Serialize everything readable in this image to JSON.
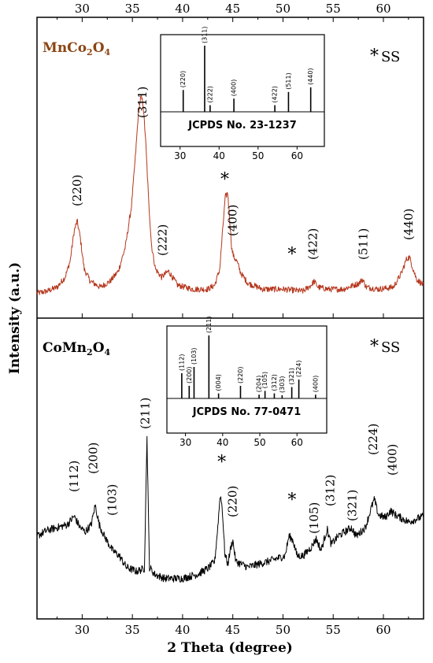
{
  "figure": {
    "xlabel": "2 Theta (degree)",
    "ylabel": "Intensity (a.u.)",
    "xlim": [
      25.5,
      64
    ],
    "x_ticks": [
      "30",
      "35",
      "40",
      "45",
      "50",
      "55",
      "60"
    ],
    "x_tick_values": [
      30,
      35,
      40,
      45,
      50,
      55,
      60
    ],
    "frame_color": "#000000"
  },
  "chart_data": [
    {
      "type": "line",
      "panel": "top",
      "color": "#b5361c",
      "sample_label": {
        "base": "MnCo",
        "sub1": "2",
        "mid": "O",
        "sub2": "4",
        "color": "#8b4513"
      },
      "legend_marker": "*",
      "legend_text": "SS",
      "x": [
        25.5,
        26.5,
        27.5,
        28.3,
        28.8,
        29.2,
        29.5,
        29.8,
        30.2,
        30.8,
        31.8,
        32.8,
        33.6,
        34.3,
        34.9,
        35.3,
        35.6,
        35.85,
        36.05,
        36.3,
        36.6,
        36.9,
        37.3,
        37.9,
        38.6,
        39.5,
        41,
        42.5,
        43.2,
        43.7,
        44,
        44.25,
        44.5,
        44.7,
        44.9,
        45.1,
        45.4,
        45.8,
        46.5,
        48,
        50,
        52,
        52.8,
        53.1,
        53.5,
        54.5,
        56,
        57.6,
        57.9,
        58.3,
        59.5,
        61,
        61.8,
        62.3,
        62.6,
        62.9,
        63.3,
        64
      ],
      "y": [
        2,
        3,
        5,
        10,
        18,
        33,
        38,
        30,
        14,
        8,
        5,
        8,
        13,
        25,
        45,
        70,
        92,
        100,
        97,
        80,
        50,
        26,
        14,
        10,
        13,
        6,
        4,
        4,
        6,
        14,
        34,
        50,
        52,
        38,
        24,
        20,
        18,
        12,
        7,
        4,
        4,
        3,
        6,
        8,
        5,
        4,
        4,
        7,
        9,
        5,
        4,
        5,
        12,
        19,
        20,
        15,
        9,
        6
      ],
      "ylim": [
        -1,
        105
      ],
      "peaks": [
        {
          "label": "(220)",
          "x": 29.5
        },
        {
          "label": "(311)",
          "x": 36.0
        },
        {
          "label": "(222)",
          "x": 38.0
        },
        {
          "label": "(400)",
          "x": 45.0
        },
        {
          "label": "(422)",
          "x": 53.0
        },
        {
          "label": "(511)",
          "x": 58.0
        },
        {
          "label": "(440)",
          "x": 62.5
        }
      ],
      "star_markers": [
        44.2,
        50.9
      ],
      "inset": {
        "caption": "JCPDS No. 23-1237",
        "xlim": [
          25,
          67
        ],
        "ticks": [
          30,
          40,
          50,
          60
        ],
        "tick_labels": [
          "30",
          "40",
          "50",
          "60"
        ],
        "reflections": [
          {
            "label": "(220)",
            "x": 30.8,
            "h": 0.33
          },
          {
            "label": "(311)",
            "x": 36.3,
            "h": 1.0
          },
          {
            "label": "(222)",
            "x": 37.7,
            "h": 0.1
          },
          {
            "label": "(400)",
            "x": 43.8,
            "h": 0.2
          },
          {
            "label": "(422)",
            "x": 54.3,
            "h": 0.1
          },
          {
            "label": "(511)",
            "x": 57.8,
            "h": 0.3
          },
          {
            "label": "(440)",
            "x": 63.5,
            "h": 0.37
          }
        ]
      }
    },
    {
      "type": "line",
      "panel": "bottom",
      "color": "#000000",
      "sample_label": {
        "base": "CoMn",
        "sub1": "2",
        "mid": "O",
        "sub2": "4",
        "color": "#000000"
      },
      "legend_marker": "*",
      "legend_text": "SS",
      "x": [
        25.5,
        26.5,
        27.5,
        28.5,
        29.2,
        29.8,
        30.3,
        30.9,
        31.3,
        31.7,
        32.2,
        33.0,
        33.7,
        34.4,
        35.4,
        36.2,
        36.45,
        36.7,
        37.2,
        38.2,
        40,
        41.5,
        42.5,
        43.2,
        43.5,
        43.75,
        43.95,
        44.2,
        44.5,
        44.8,
        45.0,
        45.3,
        46.5,
        48.5,
        50.2,
        50.6,
        51.0,
        51.4,
        52.0,
        52.8,
        53.3,
        53.8,
        54.4,
        54.8,
        55.5,
        56.8,
        57.3,
        58.2,
        58.8,
        59.1,
        59.5,
        60.2,
        60.7,
        61.2,
        62.5,
        64
      ],
      "y": [
        30,
        34,
        36,
        38,
        44,
        36,
        33,
        38,
        52,
        38,
        30,
        20,
        16,
        8,
        5,
        7,
        100,
        8,
        3,
        0,
        0,
        3,
        7,
        12,
        36,
        60,
        50,
        18,
        10,
        22,
        27,
        12,
        8,
        12,
        16,
        30,
        27,
        16,
        16,
        22,
        28,
        20,
        35,
        24,
        30,
        36,
        30,
        36,
        50,
        56,
        45,
        43,
        48,
        45,
        40,
        44
      ],
      "ylim": [
        -3,
        104
      ],
      "peaks": [
        {
          "label": "(112)",
          "x": 29.2
        },
        {
          "label": "(200)",
          "x": 31.1
        },
        {
          "label": "(103)",
          "x": 33.0
        },
        {
          "label": "(211)",
          "x": 36.3
        },
        {
          "label": "(220)",
          "x": 45.0
        },
        {
          "label": "(105)",
          "x": 53.1
        },
        {
          "label": "(312)",
          "x": 54.7
        },
        {
          "label": "(321)",
          "x": 56.9
        },
        {
          "label": "(224)",
          "x": 59.0
        },
        {
          "label": "(400)",
          "x": 60.9
        }
      ],
      "star_markers": [
        43.9,
        50.9
      ],
      "inset": {
        "caption": "JCPDS No. 77-0471",
        "xlim": [
          25,
          68
        ],
        "ticks": [
          30,
          40,
          50,
          60
        ],
        "tick_labels": [
          "30",
          "40",
          "50",
          "60"
        ],
        "reflections": [
          {
            "label": "(112)",
            "x": 29.0,
            "h": 0.4
          },
          {
            "label": "(200)",
            "x": 31.0,
            "h": 0.2
          },
          {
            "label": "(103)",
            "x": 32.3,
            "h": 0.5
          },
          {
            "label": "(211)",
            "x": 36.3,
            "h": 1.0
          },
          {
            "label": "(004)",
            "x": 38.9,
            "h": 0.08
          },
          {
            "label": "(220)",
            "x": 44.8,
            "h": 0.2
          },
          {
            "label": "(204)",
            "x": 49.8,
            "h": 0.06
          },
          {
            "label": "(105)",
            "x": 51.4,
            "h": 0.12
          },
          {
            "label": "(312)",
            "x": 53.9,
            "h": 0.08
          },
          {
            "label": "(303)",
            "x": 56.0,
            "h": 0.05
          },
          {
            "label": "(321)",
            "x": 58.6,
            "h": 0.18
          },
          {
            "label": "(224)",
            "x": 60.5,
            "h": 0.3
          },
          {
            "label": "(400)",
            "x": 65.0,
            "h": 0.06
          }
        ]
      }
    }
  ]
}
